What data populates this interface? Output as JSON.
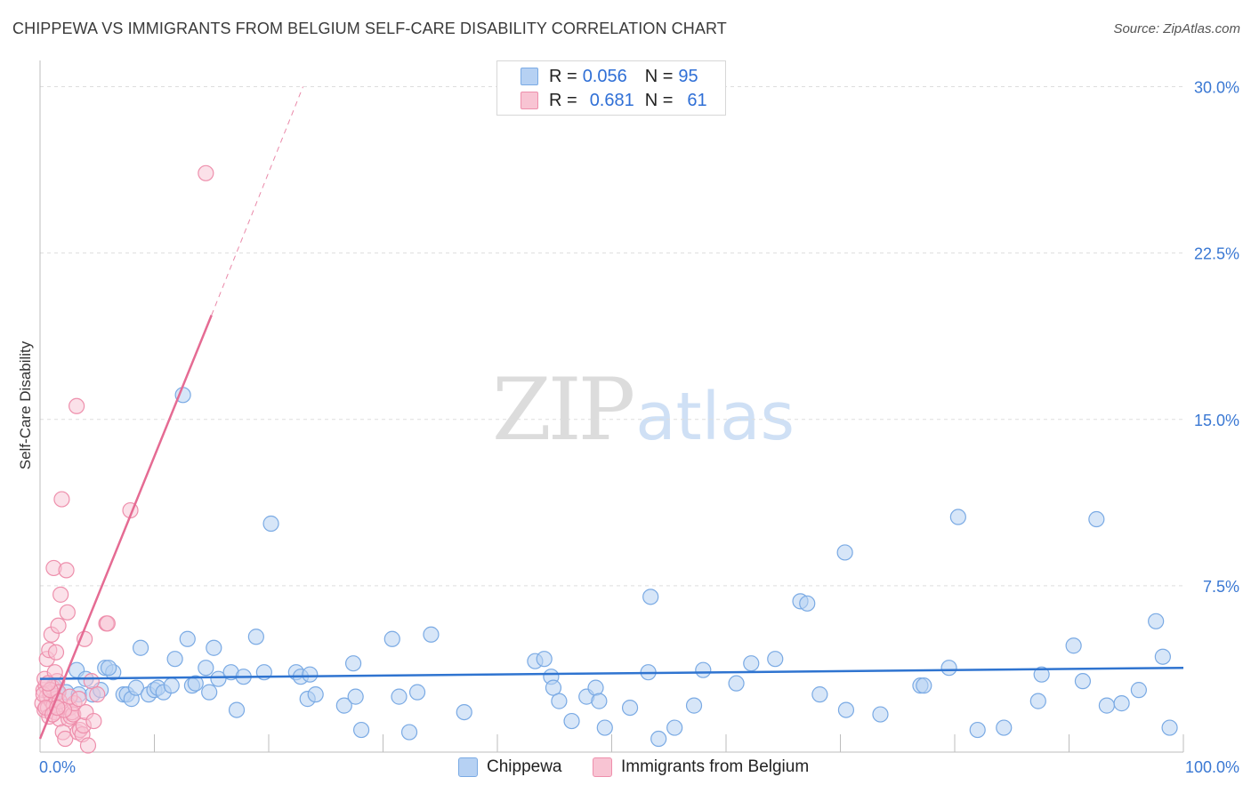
{
  "title": "CHIPPEWA VS IMMIGRANTS FROM BELGIUM SELF-CARE DISABILITY CORRELATION CHART",
  "source": "Source: ZipAtlas.com",
  "watermark": {
    "zip": "ZIP",
    "atlas": "atlas"
  },
  "legend": {
    "r_label": "R =",
    "n_label": "N =",
    "rows": [
      {
        "r": "0.056",
        "n": "95"
      },
      {
        "r": "0.681",
        "n": "61"
      }
    ]
  },
  "colors": {
    "series1_fill": "#b6d1f3",
    "series1_stroke": "#7aaae4",
    "series1_line": "#2f74d0",
    "series2_fill": "#f8c4d3",
    "series2_stroke": "#ee8fac",
    "series2_line": "#e56b93",
    "grid": "#dddddd",
    "tick_label": "#3a78d3"
  },
  "chart_data": {
    "type": "scatter",
    "title": "CHIPPEWA VS IMMIGRANTS FROM BELGIUM SELF-CARE DISABILITY CORRELATION CHART",
    "xlabel": "",
    "ylabel": "Self-Care Disability",
    "xlim": [
      0,
      100
    ],
    "ylim": [
      0,
      30
    ],
    "x_tick_labels": [
      "0.0%",
      "100.0%"
    ],
    "y_ticks": [
      7.5,
      15.0,
      22.5,
      30.0
    ],
    "y_tick_labels": [
      "7.5%",
      "15.0%",
      "22.5%",
      "30.0%"
    ],
    "grid": true,
    "series": [
      {
        "name": "Chippewa",
        "r": 0.056,
        "n": 95,
        "trend": {
          "x": [
            0,
            100
          ],
          "y": [
            3.3,
            3.8
          ]
        },
        "points": [
          [
            1.2,
            3.0
          ],
          [
            1.5,
            2.7
          ],
          [
            2.3,
            2.7
          ],
          [
            3.2,
            3.7
          ],
          [
            3.4,
            2.6
          ],
          [
            4.0,
            3.3
          ],
          [
            4.6,
            2.6
          ],
          [
            5.3,
            2.8
          ],
          [
            5.7,
            3.8
          ],
          [
            6.4,
            3.6
          ],
          [
            7.3,
            2.6
          ],
          [
            7.6,
            2.6
          ],
          [
            8.0,
            2.4
          ],
          [
            8.4,
            2.9
          ],
          [
            8.8,
            4.7
          ],
          [
            9.5,
            2.6
          ],
          [
            10.0,
            2.8
          ],
          [
            10.3,
            2.9
          ],
          [
            10.8,
            2.7
          ],
          [
            11.5,
            3.0
          ],
          [
            11.8,
            4.2
          ],
          [
            12.9,
            5.1
          ],
          [
            13.3,
            3.0
          ],
          [
            13.6,
            3.1
          ],
          [
            14.5,
            3.8
          ],
          [
            14.8,
            2.7
          ],
          [
            15.2,
            4.7
          ],
          [
            15.6,
            3.3
          ],
          [
            16.7,
            3.6
          ],
          [
            17.2,
            1.9
          ],
          [
            17.8,
            3.4
          ],
          [
            18.9,
            5.2
          ],
          [
            19.6,
            3.6
          ],
          [
            20.2,
            10.3
          ],
          [
            22.4,
            3.6
          ],
          [
            22.8,
            3.4
          ],
          [
            23.4,
            2.4
          ],
          [
            23.6,
            3.5
          ],
          [
            24.1,
            2.6
          ],
          [
            26.6,
            2.1
          ],
          [
            27.4,
            4.0
          ],
          [
            27.6,
            2.5
          ],
          [
            28.1,
            1.0
          ],
          [
            30.8,
            5.1
          ],
          [
            31.4,
            2.5
          ],
          [
            32.3,
            0.9
          ],
          [
            33.0,
            2.7
          ],
          [
            34.2,
            5.3
          ],
          [
            37.1,
            1.8
          ],
          [
            43.3,
            4.1
          ],
          [
            44.1,
            4.2
          ],
          [
            44.7,
            3.4
          ],
          [
            44.9,
            2.9
          ],
          [
            45.4,
            2.3
          ],
          [
            46.5,
            1.4
          ],
          [
            47.8,
            2.5
          ],
          [
            48.6,
            2.9
          ],
          [
            48.9,
            2.3
          ],
          [
            49.4,
            1.1
          ],
          [
            51.6,
            2.0
          ],
          [
            53.2,
            3.6
          ],
          [
            53.4,
            7.0
          ],
          [
            54.1,
            0.6
          ],
          [
            55.5,
            1.1
          ],
          [
            57.2,
            2.1
          ],
          [
            58.0,
            3.7
          ],
          [
            60.9,
            3.1
          ],
          [
            62.2,
            4.0
          ],
          [
            64.3,
            4.2
          ],
          [
            66.5,
            6.8
          ],
          [
            67.1,
            6.7
          ],
          [
            68.2,
            2.6
          ],
          [
            70.4,
            9.0
          ],
          [
            70.5,
            1.9
          ],
          [
            73.5,
            1.7
          ],
          [
            77.0,
            3.0
          ],
          [
            77.3,
            3.0
          ],
          [
            79.5,
            3.8
          ],
          [
            80.3,
            10.6
          ],
          [
            82.0,
            1.0
          ],
          [
            84.3,
            1.1
          ],
          [
            87.3,
            2.3
          ],
          [
            87.6,
            3.5
          ],
          [
            90.4,
            4.8
          ],
          [
            91.2,
            3.2
          ],
          [
            92.4,
            10.5
          ],
          [
            93.3,
            2.1
          ],
          [
            94.6,
            2.2
          ],
          [
            96.1,
            2.8
          ],
          [
            97.6,
            5.9
          ],
          [
            98.2,
            4.3
          ],
          [
            98.8,
            1.1
          ],
          [
            12.5,
            16.1
          ],
          [
            1.0,
            2.5
          ],
          [
            6.0,
            3.8
          ]
        ]
      },
      {
        "name": "Immigrants from Belgium",
        "r": 0.681,
        "n": 61,
        "trend": {
          "x": [
            0,
            15
          ],
          "y": [
            0.6,
            19.7
          ]
        },
        "trend_dashed": {
          "x": [
            15,
            23
          ],
          "y": [
            19.7,
            30.0
          ]
        },
        "points": [
          [
            0.2,
            2.2
          ],
          [
            0.3,
            2.8
          ],
          [
            0.4,
            1.9
          ],
          [
            0.5,
            3.0
          ],
          [
            0.6,
            2.5
          ],
          [
            0.7,
            2.0
          ],
          [
            0.8,
            1.6
          ],
          [
            0.9,
            2.6
          ],
          [
            1.0,
            2.3
          ],
          [
            1.1,
            2.9
          ],
          [
            1.2,
            2.1
          ],
          [
            1.3,
            1.8
          ],
          [
            1.4,
            2.4
          ],
          [
            1.5,
            3.2
          ],
          [
            1.6,
            2.7
          ],
          [
            1.7,
            1.5
          ],
          [
            0.4,
            3.3
          ],
          [
            0.6,
            4.2
          ],
          [
            0.8,
            4.6
          ],
          [
            1.0,
            5.3
          ],
          [
            1.2,
            8.3
          ],
          [
            1.3,
            3.6
          ],
          [
            1.4,
            4.5
          ],
          [
            1.6,
            5.7
          ],
          [
            1.8,
            7.1
          ],
          [
            1.9,
            11.4
          ],
          [
            2.0,
            0.9
          ],
          [
            2.2,
            0.6
          ],
          [
            2.3,
            8.2
          ],
          [
            2.4,
            6.3
          ],
          [
            2.5,
            1.5
          ],
          [
            2.6,
            2.0
          ],
          [
            2.7,
            1.6
          ],
          [
            2.8,
            1.8
          ],
          [
            2.9,
            1.7
          ],
          [
            3.0,
            2.2
          ],
          [
            3.2,
            15.6
          ],
          [
            3.3,
            0.9
          ],
          [
            3.5,
            1.0
          ],
          [
            3.7,
            0.8
          ],
          [
            3.8,
            1.2
          ],
          [
            3.9,
            5.1
          ],
          [
            4.0,
            1.8
          ],
          [
            4.2,
            0.3
          ],
          [
            4.5,
            3.2
          ],
          [
            4.7,
            1.4
          ],
          [
            5.0,
            2.6
          ],
          [
            5.8,
            5.8
          ],
          [
            5.9,
            5.8
          ],
          [
            7.9,
            10.9
          ],
          [
            14.5,
            26.1
          ],
          [
            0.3,
            2.6
          ],
          [
            0.5,
            2.0
          ],
          [
            0.9,
            2.8
          ],
          [
            1.1,
            1.7
          ],
          [
            1.7,
            2.3
          ],
          [
            2.1,
            1.9
          ],
          [
            2.6,
            2.5
          ],
          [
            0.7,
            3.1
          ],
          [
            1.5,
            2.0
          ],
          [
            3.4,
            2.4
          ]
        ]
      }
    ]
  }
}
